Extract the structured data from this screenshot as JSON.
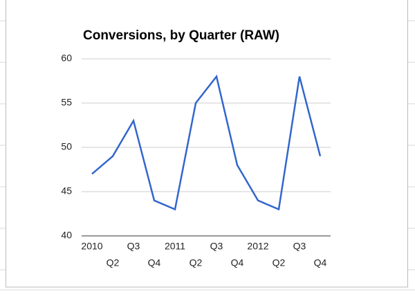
{
  "chart_data": {
    "type": "line",
    "title": "Conversions, by Quarter (RAW)",
    "categories": [
      "2010",
      "Q2",
      "Q3",
      "Q4",
      "2011",
      "Q2",
      "Q3",
      "Q4",
      "2012",
      "Q2",
      "Q3",
      "Q4"
    ],
    "series": [
      {
        "name": "Conversions",
        "color": "#3366cc",
        "values": [
          47,
          49,
          53,
          44,
          43,
          55,
          58,
          48,
          44,
          43,
          58,
          49
        ]
      }
    ],
    "ylim": [
      40,
      60
    ],
    "yticks": [
      40,
      45,
      50,
      55,
      60
    ],
    "grid": true
  }
}
